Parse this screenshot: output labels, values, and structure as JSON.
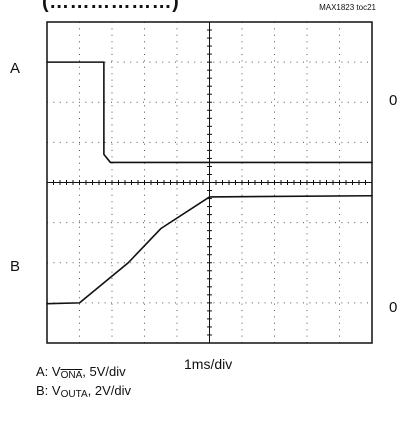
{
  "header": {
    "title_fragment": "(………………)",
    "toc": "MAX1823 toc21"
  },
  "channels": {
    "a_label": "A",
    "b_label": "B",
    "a_zero": "0",
    "b_zero": "0"
  },
  "footer": {
    "time_scale": "1ms/div",
    "legend_a_prefix": "A: V",
    "legend_a_sub": "ONA",
    "legend_a_suffix": ", 5V/div",
    "legend_b_prefix": "B: V",
    "legend_b_sub": "OUTA",
    "legend_b_suffix": ", 2V/div"
  },
  "colors": {
    "trace": "#111111",
    "grid_dots": "#555555",
    "frame": "#111111"
  },
  "chart_data": {
    "type": "line",
    "x_divisions": 10,
    "y_divisions": 8,
    "xlim": [
      0,
      10
    ],
    "ylim": [
      -4,
      4
    ],
    "series": [
      {
        "name": "A",
        "x": [
          0,
          1.75,
          1.75,
          1.95,
          10
        ],
        "y": [
          3.0,
          3.0,
          0.7,
          0.5,
          0.5
        ],
        "color": "#111111"
      },
      {
        "name": "B",
        "x": [
          0,
          1.0,
          2.5,
          3.5,
          5.0,
          10
        ],
        "y": [
          -3.02,
          -3.0,
          -2.0,
          -1.15,
          -0.36,
          -0.33
        ],
        "color": "#111111"
      }
    ],
    "references": [
      {
        "channel": "A",
        "zero_at_division": 0.5
      },
      {
        "channel": "B",
        "zero_at_division": -3.0
      }
    ]
  }
}
